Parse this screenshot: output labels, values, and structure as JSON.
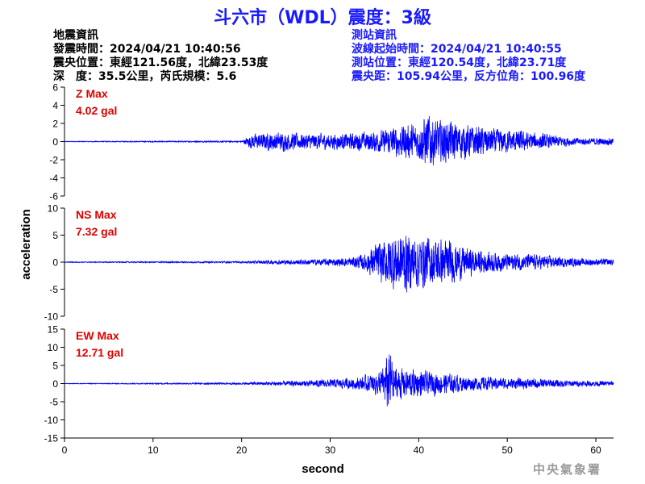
{
  "title": "斗六市（WDL）震度：3級",
  "earthquake_info": {
    "heading": "地震資訊",
    "origin_time": "發震時間：2024/04/21 10:40:56",
    "epicenter": "震央位置：東經121.56度，北緯23.53度",
    "depth_magnitude": "深　度：35.5公里，芮氏規模：5.6"
  },
  "station_info": {
    "heading": "測站資訊",
    "wave_start": "波線起始時間：2024/04/21 10:40:55",
    "location": "測站位置：東經120.54度，北緯23.71度",
    "distance": "震央距：105.94公里，反方位角：100.96度"
  },
  "agency": "中央氣象署",
  "chart_data": {
    "type": "line",
    "xlabel": "second",
    "ylabel": "acceleration",
    "xlim": [
      0,
      62
    ],
    "xticks": [
      0,
      10,
      20,
      30,
      40,
      50,
      60
    ],
    "line_color": "#0000ff",
    "label_color": "#e00000",
    "panels": [
      {
        "name": "Z Max",
        "max_label": "4.02 gal",
        "ylim": [
          -6,
          6
        ],
        "yticks": [
          -6,
          -4,
          -2,
          0,
          2,
          4,
          6
        ],
        "envelope": [
          [
            0,
            0.05
          ],
          [
            20,
            0.1
          ],
          [
            20.5,
            0.5
          ],
          [
            21,
            1.0
          ],
          [
            24,
            1.3
          ],
          [
            28,
            1.1
          ],
          [
            32,
            1.1
          ],
          [
            36,
            1.6
          ],
          [
            38,
            2.3
          ],
          [
            40,
            2.5
          ],
          [
            41,
            4.02
          ],
          [
            42,
            3.0
          ],
          [
            45,
            2.5
          ],
          [
            48,
            1.8
          ],
          [
            52,
            1.4
          ],
          [
            55,
            0.9
          ],
          [
            58,
            0.5
          ],
          [
            60,
            0.5
          ],
          [
            62,
            0.5
          ]
        ]
      },
      {
        "name": "NS Max",
        "max_label": "7.32 gal",
        "ylim": [
          -10,
          10
        ],
        "yticks": [
          -10,
          -5,
          0,
          5,
          10
        ],
        "envelope": [
          [
            0,
            0.1
          ],
          [
            20,
            0.2
          ],
          [
            22,
            0.4
          ],
          [
            28,
            0.7
          ],
          [
            32,
            1.0
          ],
          [
            34,
            2.0
          ],
          [
            35,
            4.0
          ],
          [
            37,
            6.5
          ],
          [
            38,
            7.32
          ],
          [
            40,
            6.0
          ],
          [
            42,
            5.5
          ],
          [
            44,
            4.5
          ],
          [
            46,
            3.0
          ],
          [
            48,
            2.5
          ],
          [
            50,
            2.0
          ],
          [
            53,
            1.8
          ],
          [
            57,
            1.0
          ],
          [
            60,
            0.8
          ],
          [
            62,
            0.8
          ]
        ]
      },
      {
        "name": "EW Max",
        "max_label": "12.71 gal",
        "ylim": [
          -15,
          15
        ],
        "yticks": [
          -15,
          -10,
          -5,
          0,
          5,
          10,
          15
        ],
        "envelope": [
          [
            0,
            0.1
          ],
          [
            20,
            0.3
          ],
          [
            22,
            0.6
          ],
          [
            27,
            1.0
          ],
          [
            30,
            1.5
          ],
          [
            33,
            2.0
          ],
          [
            35,
            3.5
          ],
          [
            36,
            5.5
          ],
          [
            36.7,
            12.71
          ],
          [
            37.3,
            6.0
          ],
          [
            39,
            5.0
          ],
          [
            41,
            4.0
          ],
          [
            43,
            3.5
          ],
          [
            46,
            2.5
          ],
          [
            50,
            2.0
          ],
          [
            55,
            1.5
          ],
          [
            58,
            1.0
          ],
          [
            62,
            0.8
          ]
        ]
      }
    ]
  }
}
